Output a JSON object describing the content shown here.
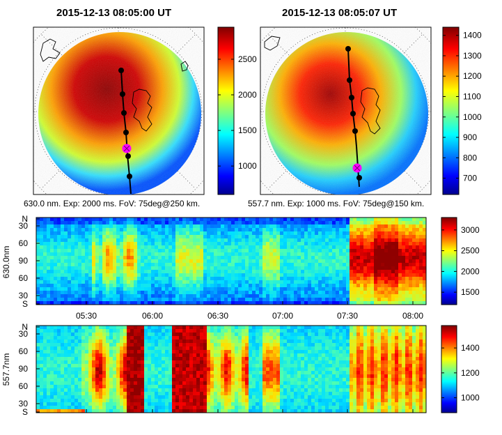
{
  "colors": {
    "jet": [
      "#00008f",
      "#0000ff",
      "#0070ff",
      "#00e0ff",
      "#50ffaf",
      "#c0ff40",
      "#ffe000",
      "#ff7000",
      "#ff0000",
      "#8f0000"
    ],
    "track": "#000000",
    "marker": "#ff00ff"
  },
  "chart_data": [
    {
      "type": "heatmap",
      "panel": "allsky-630",
      "title": "2015-12-13 08:05:00 UT",
      "caption": "630.0 nm. Exp: 2000 ms. FoV: 75deg@250 km.",
      "colorbar": {
        "range": [
          600,
          2950
        ],
        "ticks": [
          1000,
          1500,
          2000,
          2500
        ]
      }
    },
    {
      "type": "heatmap",
      "panel": "allsky-5577",
      "title": "2015-12-13 08:05:07 UT",
      "caption": "557.7 nm. Exp: 1000 ms. FoV: 75deg@150 km.",
      "colorbar": {
        "range": [
          620,
          1440
        ],
        "ticks": [
          700,
          800,
          900,
          1000,
          1100,
          1200,
          1300,
          1400
        ]
      }
    },
    {
      "type": "heatmap",
      "panel": "keogram-630",
      "ylabel": "630.0nm",
      "yticks": [
        "N",
        "30",
        "60",
        "90",
        "60",
        "30",
        "S"
      ],
      "xticks": [
        "05:30",
        "06:00",
        "06:30",
        "07:00",
        "07:30",
        "08:00"
      ],
      "colorbar": {
        "range": [
          1200,
          3300
        ],
        "ticks": [
          1500,
          2000,
          2500,
          3000
        ]
      }
    },
    {
      "type": "heatmap",
      "panel": "keogram-5577",
      "ylabel": "557.7nm",
      "yticks": [
        "N",
        "30",
        "60",
        "90",
        "60",
        "30",
        "S"
      ],
      "colorbar": {
        "range": [
          880,
          1580
        ],
        "ticks": [
          1000,
          1200,
          1400
        ]
      }
    }
  ]
}
